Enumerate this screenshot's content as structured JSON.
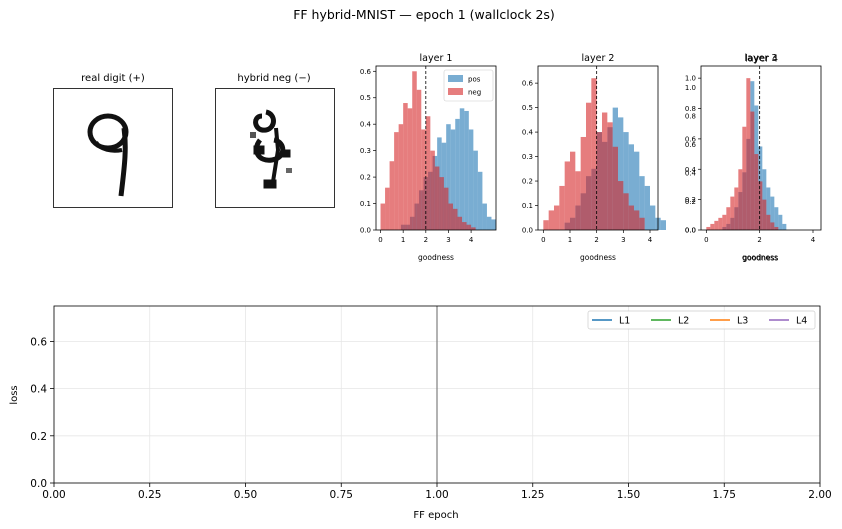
{
  "title": "FF hybrid-MNIST — epoch 1  (wallclock 2s)",
  "images": [
    {
      "title": "real digit (+)"
    },
    {
      "title": "hybrid neg (−)"
    }
  ],
  "colors": {
    "pos": "#1f77b4",
    "neg": "#d62728",
    "L1": "#1f77b4",
    "L2": "#2ca02c",
    "L3": "#ff7f0e",
    "L4": "#9467bd",
    "vline": "#7f7f7f"
  },
  "chart_data": [
    {
      "type": "histogram",
      "title": "layer 1",
      "xlabel": "goodness",
      "xlim": [
        -0.2,
        5.1
      ],
      "ylim": [
        0,
        0.62
      ],
      "xticks": [
        "0",
        "1",
        "2",
        "3",
        "4"
      ],
      "yticks": [
        "0.0",
        "0.1",
        "0.2",
        "0.3",
        "0.4",
        "0.5",
        "0.6"
      ],
      "threshold": 2.0,
      "legend": [
        "pos",
        "neg"
      ],
      "bin_width": 0.2,
      "series": [
        {
          "name": "pos",
          "x0": 0.9,
          "values": [
            0.02,
            0.02,
            0.05,
            0.1,
            0.15,
            0.2,
            0.22,
            0.28,
            0.35,
            0.33,
            0.4,
            0.38,
            0.42,
            0.46,
            0.45,
            0.38,
            0.3,
            0.22,
            0.1,
            0.05,
            0.04
          ]
        },
        {
          "name": "neg",
          "x0": 0.0,
          "values": [
            0.1,
            0.16,
            0.26,
            0.37,
            0.4,
            0.48,
            0.46,
            0.6,
            0.53,
            0.38,
            0.43,
            0.3,
            0.24,
            0.2,
            0.16,
            0.1,
            0.08,
            0.05,
            0.03,
            0.02,
            0.01
          ]
        }
      ]
    },
    {
      "type": "histogram",
      "title": "layer 2",
      "xlabel": "goodness",
      "xlim": [
        -0.2,
        4.3
      ],
      "ylim": [
        0,
        0.67
      ],
      "xticks": [
        "0",
        "1",
        "2",
        "3",
        "4"
      ],
      "yticks": [
        "0.0",
        "0.1",
        "0.2",
        "0.3",
        "0.4",
        "0.5",
        "0.6"
      ],
      "threshold": 2.0,
      "bin_width": 0.2,
      "series": [
        {
          "name": "pos",
          "x0": 0.8,
          "values": [
            0.03,
            0.05,
            0.1,
            0.15,
            0.22,
            0.25,
            0.4,
            0.36,
            0.42,
            0.5,
            0.46,
            0.4,
            0.35,
            0.32,
            0.22,
            0.18,
            0.1,
            0.05,
            0.04
          ]
        },
        {
          "name": "neg",
          "x0": 0.0,
          "values": [
            0.04,
            0.08,
            0.1,
            0.18,
            0.28,
            0.32,
            0.24,
            0.38,
            0.52,
            0.62,
            0.4,
            0.48,
            0.44,
            0.34,
            0.2,
            0.15,
            0.1,
            0.08,
            0.05
          ]
        }
      ]
    },
    {
      "type": "histogram",
      "title": "layer 3",
      "overlay_title": "layer 4",
      "xlabel": "goodness",
      "xlim": [
        -0.2,
        4.3
      ],
      "ylim": [
        0,
        1.08
      ],
      "xticks": [
        "0",
        "2",
        "4"
      ],
      "yticks": [
        "0.0",
        "0.2",
        "0.4",
        "0.6",
        "0.8",
        "1.0"
      ],
      "overlay_yticks": [
        "0.0",
        "0.2",
        "0.4",
        "0.6",
        "0.8",
        "1.0"
      ],
      "threshold": 2.0,
      "bin_width": 0.15,
      "series": [
        {
          "name": "pos",
          "x0": 0.6,
          "values": [
            0.02,
            0.04,
            0.08,
            0.15,
            0.25,
            0.38,
            0.6,
            0.98,
            0.82,
            0.55,
            0.4,
            0.28,
            0.22,
            0.15,
            0.1,
            0.04
          ]
        },
        {
          "name": "neg",
          "x0": 0.0,
          "values": [
            0.02,
            0.04,
            0.06,
            0.08,
            0.1,
            0.15,
            0.22,
            0.28,
            0.4,
            0.68,
            1.0,
            0.78,
            0.5,
            0.32,
            0.2,
            0.1,
            0.05,
            0.02
          ]
        }
      ]
    },
    {
      "type": "line",
      "xlabel": "FF epoch",
      "ylabel": "loss",
      "xlim": [
        0,
        2
      ],
      "ylim": [
        0,
        0.75
      ],
      "xticks": [
        "0.00",
        "0.25",
        "0.50",
        "0.75",
        "1.00",
        "1.25",
        "1.50",
        "1.75",
        "2.00"
      ],
      "yticks": [
        "0.0",
        "0.2",
        "0.4",
        "0.6"
      ],
      "grid": true,
      "legend_position": "top-right",
      "vline": 1.0,
      "series": [
        {
          "name": "L1",
          "x": [],
          "y": []
        },
        {
          "name": "L2",
          "x": [],
          "y": []
        },
        {
          "name": "L3",
          "x": [],
          "y": []
        },
        {
          "name": "L4",
          "x": [],
          "y": []
        }
      ]
    }
  ]
}
